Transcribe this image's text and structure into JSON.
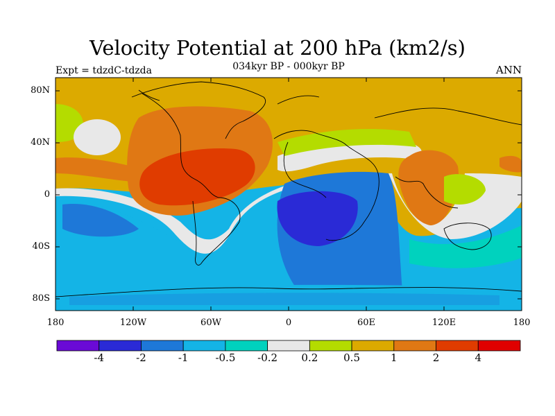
{
  "title": "Velocity Potential at 200 hPa (km2/s)",
  "subtitle": "034kyr BP - 000kyr BP",
  "left_label": "Expt = tdzdC-tdzda",
  "right_label": "ANN",
  "lat_ticks": [
    "80N",
    "40N",
    "0",
    "40S",
    "80S"
  ],
  "lon_ticks": [
    "180",
    "120W",
    "60W",
    "0",
    "60E",
    "120E",
    "180"
  ],
  "colorbar": {
    "colors": [
      "#6a0ad6",
      "#2a2ad6",
      "#1e78d8",
      "#14b4e6",
      "#00d2be",
      "#e8e8e8",
      "#b4dc00",
      "#dcaa00",
      "#e07814",
      "#e03c00",
      "#e00000"
    ],
    "labels": [
      "-4",
      "-2",
      "-1",
      "-0.5",
      "-0.2",
      "0.2",
      "0.5",
      "1",
      "2",
      "4"
    ]
  }
}
